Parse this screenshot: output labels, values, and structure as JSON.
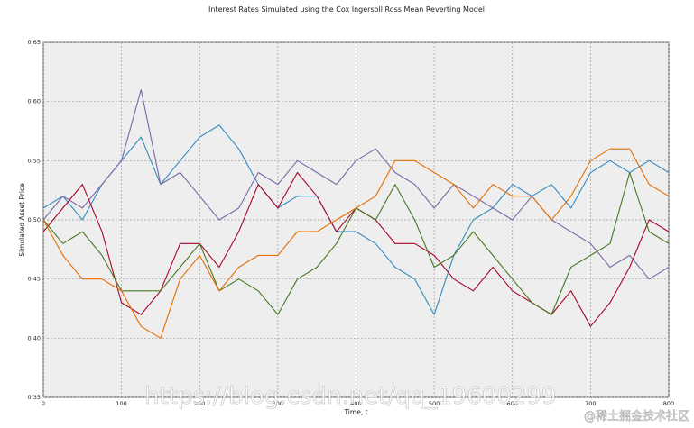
{
  "chart_data": {
    "type": "line",
    "title": "Interest Rates Simulated using the Cox Ingersoll Ross Mean Reverting Model",
    "xlabel": "Time, t",
    "ylabel": "Simulated Asset Price",
    "xlim": [
      0,
      800
    ],
    "ylim": [
      0.35,
      0.65
    ],
    "xticks": [
      "0",
      "100",
      "200",
      "300",
      "400",
      "500",
      "600",
      "700",
      "800"
    ],
    "yticks": [
      "0.35",
      "0.40",
      "0.45",
      "0.50",
      "0.55",
      "0.60",
      "0.65"
    ],
    "grid": true,
    "x": [
      0,
      25,
      50,
      75,
      100,
      125,
      150,
      175,
      200,
      225,
      250,
      275,
      300,
      325,
      350,
      375,
      400,
      425,
      450,
      475,
      500,
      525,
      550,
      575,
      600,
      625,
      650,
      675,
      700,
      725,
      750,
      775,
      800
    ],
    "series": [
      {
        "color": "#348abd",
        "values": [
          0.51,
          0.52,
          0.5,
          0.53,
          0.55,
          0.57,
          0.53,
          0.55,
          0.57,
          0.58,
          0.56,
          0.53,
          0.51,
          0.52,
          0.52,
          0.49,
          0.49,
          0.48,
          0.46,
          0.45,
          0.42,
          0.47,
          0.5,
          0.51,
          0.53,
          0.52,
          0.53,
          0.51,
          0.54,
          0.55,
          0.54,
          0.55,
          0.54
        ]
      },
      {
        "color": "#7a68a6",
        "values": [
          0.5,
          0.52,
          0.51,
          0.53,
          0.55,
          0.61,
          0.53,
          0.54,
          0.52,
          0.5,
          0.51,
          0.54,
          0.53,
          0.55,
          0.54,
          0.53,
          0.55,
          0.56,
          0.54,
          0.53,
          0.51,
          0.53,
          0.52,
          0.51,
          0.5,
          0.52,
          0.5,
          0.49,
          0.48,
          0.46,
          0.47,
          0.45,
          0.46
        ]
      },
      {
        "color": "#a60628",
        "values": [
          0.49,
          0.51,
          0.53,
          0.49,
          0.43,
          0.42,
          0.44,
          0.48,
          0.48,
          0.46,
          0.49,
          0.53,
          0.51,
          0.54,
          0.52,
          0.49,
          0.51,
          0.5,
          0.48,
          0.48,
          0.47,
          0.45,
          0.44,
          0.46,
          0.44,
          0.43,
          0.42,
          0.44,
          0.41,
          0.43,
          0.46,
          0.5,
          0.49
        ]
      },
      {
        "color": "#467821",
        "values": [
          0.5,
          0.48,
          0.49,
          0.47,
          0.44,
          0.44,
          0.44,
          0.46,
          0.48,
          0.44,
          0.45,
          0.44,
          0.42,
          0.45,
          0.46,
          0.48,
          0.51,
          0.5,
          0.53,
          0.5,
          0.46,
          0.47,
          0.49,
          0.47,
          0.45,
          0.43,
          0.42,
          0.46,
          0.47,
          0.48,
          0.54,
          0.49,
          0.48
        ]
      },
      {
        "color": "#e66e00",
        "values": [
          0.5,
          0.47,
          0.45,
          0.45,
          0.44,
          0.41,
          0.4,
          0.45,
          0.47,
          0.44,
          0.46,
          0.47,
          0.47,
          0.49,
          0.49,
          0.5,
          0.51,
          0.52,
          0.55,
          0.55,
          0.54,
          0.53,
          0.51,
          0.53,
          0.52,
          0.52,
          0.5,
          0.52,
          0.55,
          0.56,
          0.56,
          0.53,
          0.52
        ]
      }
    ]
  },
  "watermark": "https://blog.csdn.net/qq_19600299",
  "credit": "@稀土掘金技术社区"
}
